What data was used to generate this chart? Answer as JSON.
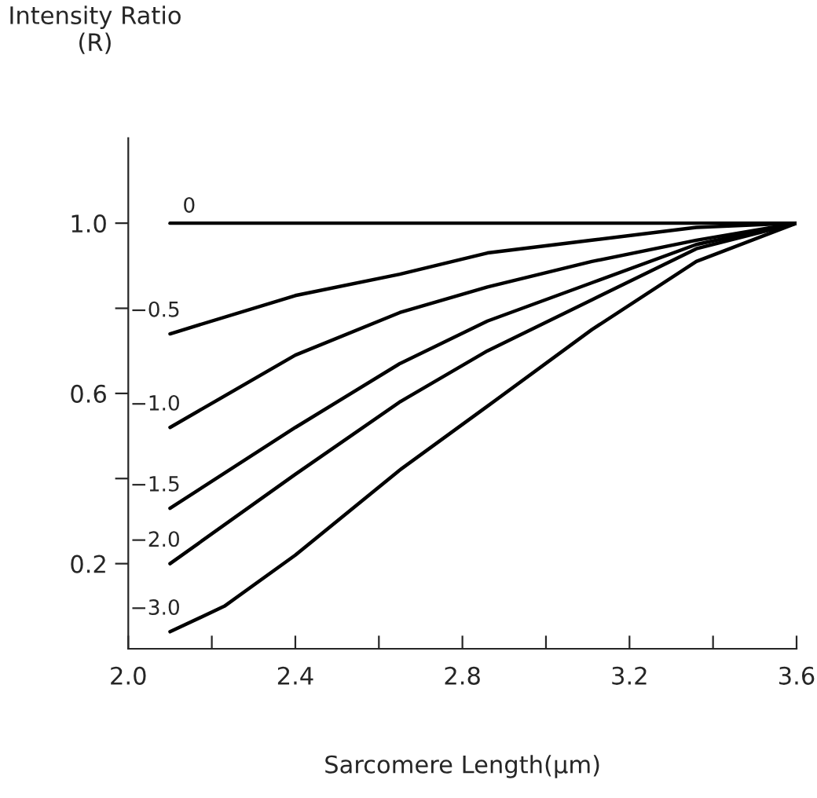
{
  "chart_data": {
    "type": "line",
    "xlabel": "Sarcomere Length(μm)",
    "ylabel": "Intensity Ratio\n(R)",
    "xlim": [
      2.0,
      3.6
    ],
    "ylim": [
      0,
      1.2
    ],
    "xticks": [
      {
        "value": 2.0,
        "label": "2.0"
      },
      {
        "value": 2.2,
        "label": null
      },
      2.4,
      {
        "value": 2.6,
        "label": null
      },
      2.8,
      {
        "value": 3.0,
        "label": null
      },
      3.2,
      {
        "value": 3.4,
        "label": null
      },
      3.6
    ],
    "yticks": [
      0.2,
      {
        "value": 0.4,
        "label": null
      },
      0.6,
      {
        "value": 0.8,
        "label": null
      },
      {
        "value": 1.0,
        "label": "1.0"
      }
    ],
    "grid": false,
    "legend": false,
    "marker": "none",
    "line_style": "solid",
    "series": [
      {
        "name": "0",
        "color": "#000000",
        "x": [
          2.1,
          3.6
        ],
        "values": [
          1.0,
          1.0
        ]
      },
      {
        "name": "−0.5",
        "color": "#000000",
        "x": [
          2.1,
          2.4,
          2.65,
          2.86,
          3.11,
          3.36,
          3.6
        ],
        "values": [
          0.74,
          0.83,
          0.88,
          0.93,
          0.96,
          0.99,
          1.0
        ]
      },
      {
        "name": "−1.0",
        "color": "#000000",
        "x": [
          2.1,
          2.4,
          2.65,
          2.86,
          3.11,
          3.36,
          3.6
        ],
        "values": [
          0.52,
          0.69,
          0.79,
          0.85,
          0.91,
          0.96,
          1.0
        ]
      },
      {
        "name": "−1.5",
        "color": "#000000",
        "x": [
          2.1,
          2.4,
          2.65,
          2.86,
          3.11,
          3.36,
          3.6
        ],
        "values": [
          0.33,
          0.52,
          0.67,
          0.77,
          0.86,
          0.95,
          1.0
        ]
      },
      {
        "name": "−2.0",
        "color": "#000000",
        "x": [
          2.1,
          2.4,
          2.65,
          2.86,
          3.11,
          3.36,
          3.6
        ],
        "values": [
          0.2,
          0.41,
          0.58,
          0.7,
          0.82,
          0.94,
          1.0
        ]
      },
      {
        "name": "−3.0",
        "color": "#000000",
        "x": [
          2.1,
          2.23,
          2.4,
          2.65,
          2.86,
          3.11,
          3.36,
          3.6
        ],
        "values": [
          0.04,
          0.1,
          0.22,
          0.42,
          0.57,
          0.75,
          0.91,
          1.0
        ]
      }
    ]
  }
}
